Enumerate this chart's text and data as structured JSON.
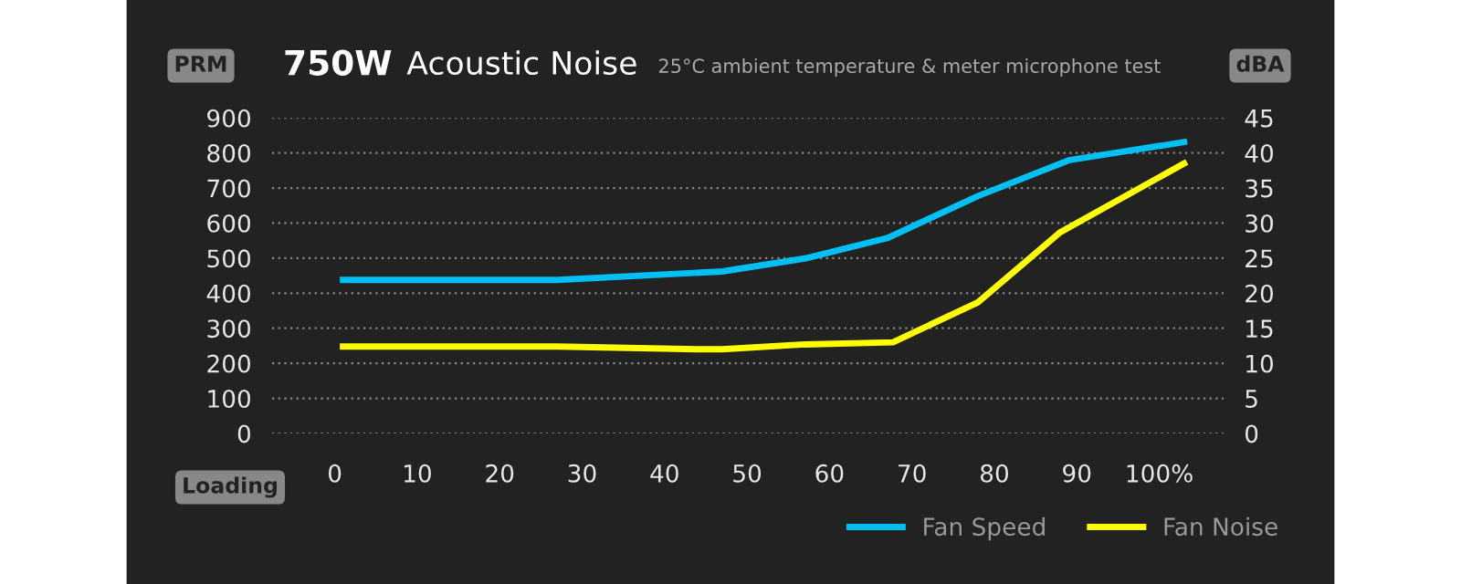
{
  "chart_data": {
    "type": "line",
    "title": "750W Acoustic Noise",
    "subtitle": "25°C ambient temperature & meter microphone test",
    "xlabel": "Loading",
    "ylabel": "PRM",
    "y2label": "dBA",
    "xlim": [
      -7.6,
      107.8
    ],
    "xticks": [
      0,
      10,
      20,
      30,
      40,
      50,
      60,
      70,
      80,
      90,
      {
        "value": 100,
        "label": "100%"
      }
    ],
    "ylim": [
      0,
      900
    ],
    "yticks": [
      0,
      100,
      200,
      300,
      400,
      500,
      600,
      700,
      800,
      900
    ],
    "y2lim": [
      0,
      45
    ],
    "y2ticks": [
      0,
      5,
      10,
      15,
      20,
      25,
      30,
      35,
      40,
      45
    ],
    "grid": "y",
    "legend": "bottom right",
    "marker": "none",
    "line_style": "solid",
    "series": [
      {
        "name": "Fan Speed",
        "color": "#00bff3",
        "x": [
          1,
          27,
          47,
          57,
          67,
          78,
          89,
          103
        ],
        "values": [
          438,
          438,
          462,
          499,
          557,
          677,
          779,
          831
        ]
      },
      {
        "name": "Fan Noise",
        "color": "#ffff00",
        "axis": "y2",
        "x": [
          1,
          27,
          44,
          47,
          57,
          67.7,
          78,
          88,
          103
        ],
        "values": [
          12.4,
          12.4,
          12.0,
          12.0,
          12.7,
          13.0,
          18.7,
          28.7,
          38.5
        ]
      }
    ]
  }
}
